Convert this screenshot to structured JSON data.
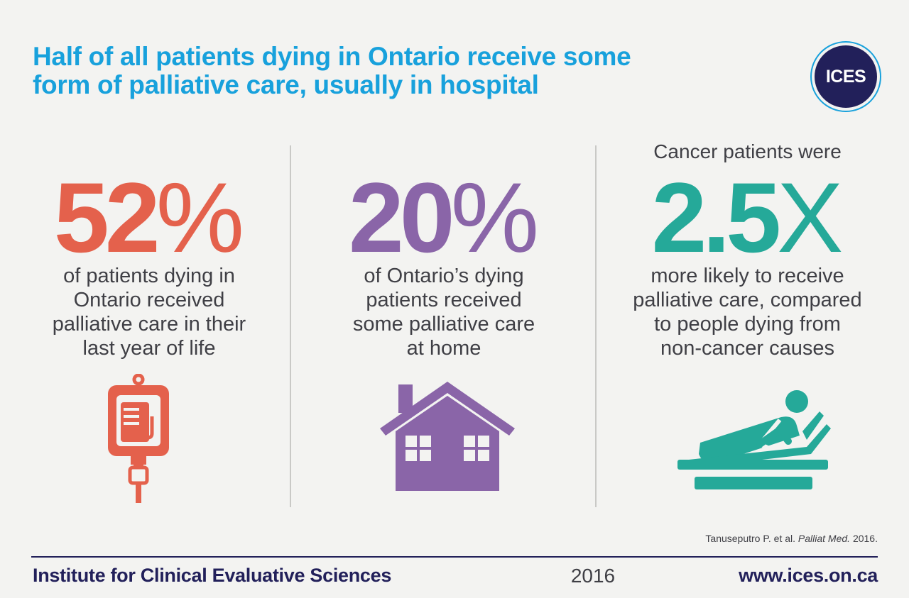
{
  "headline": {
    "line1": "Half of all patients dying in Ontario receive some",
    "line2": "form of palliative care, usually in hospital"
  },
  "logo": {
    "text": "ICES"
  },
  "colors": {
    "headline": "#18a1dc",
    "stat1": "#e4614c",
    "stat2": "#8a65a8",
    "stat3": "#25a999",
    "navy": "#22205a",
    "body_text": "#3f3f45"
  },
  "stats": [
    {
      "value": "52",
      "unit": "%",
      "description": [
        "of patients dying in",
        "Ontario received",
        "palliative care in their",
        "last year of life"
      ],
      "icon": "iv-bag-icon"
    },
    {
      "value": "20",
      "unit": "%",
      "description": [
        "of Ontario’s dying",
        "patients received",
        "some palliative care",
        "at home"
      ],
      "icon": "house-icon"
    },
    {
      "pre": "Cancer patients were",
      "value": "2.5",
      "unit": "X",
      "description": [
        "more likely to receive",
        "palliative care, compared",
        "to people dying from",
        "non-cancer causes"
      ],
      "icon": "hospital-bed-patient-icon"
    }
  ],
  "citation": {
    "authors": "Tanuseputro P. et al.",
    "journal": "Palliat Med.",
    "year": "2016."
  },
  "footer": {
    "organization": "Institute for Clinical Evaluative Sciences",
    "year": "2016",
    "url": "www.ices.on.ca"
  }
}
